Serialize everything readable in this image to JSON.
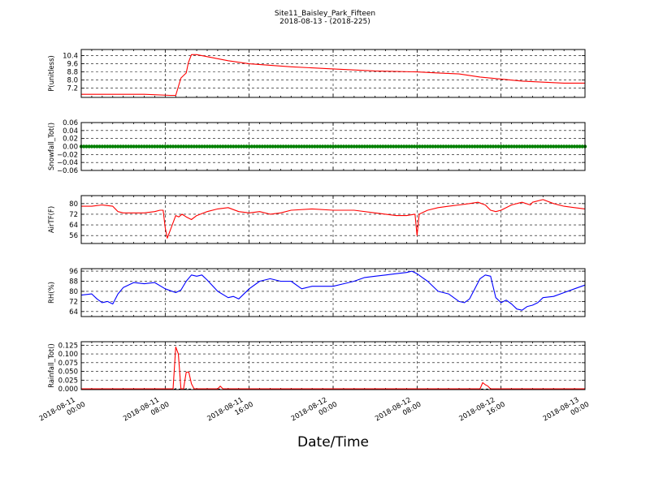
{
  "title": "Site11_Baisley_Park_Fifteen",
  "subtitle": "2018-08-13 - (2018-225)",
  "xlabel": "Date/Time",
  "x_ticks": [
    {
      "t": 0,
      "line1": "2018-08-11",
      "line2": "00:00"
    },
    {
      "t": 8,
      "line1": "2018-08-11",
      "line2": "08:00"
    },
    {
      "t": 16,
      "line1": "2018-08-11",
      "line2": "16:00"
    },
    {
      "t": 24,
      "line1": "2018-08-12",
      "line2": "00:00"
    },
    {
      "t": 32,
      "line1": "2018-08-12",
      "line2": "08:00"
    },
    {
      "t": 40,
      "line1": "2018-08-12",
      "line2": "16:00"
    },
    {
      "t": 48,
      "line1": "2018-08-13",
      "line2": "00:00"
    }
  ],
  "colors": {
    "red": "#ff0000",
    "green": "#008000",
    "blue": "#0000ff"
  },
  "chart_data": [
    {
      "type": "line",
      "ylabel": "P(unitless)",
      "ylim": [
        6.3,
        11.0
      ],
      "yticks": [
        7.2,
        8.0,
        8.8,
        9.6,
        10.4
      ],
      "ytick_labels": [
        "7.2",
        "8.0",
        "8.8",
        "9.6",
        "10.4"
      ],
      "color": "red",
      "x": [
        0,
        3,
        6,
        8.5,
        9,
        9.5,
        10,
        10.2,
        10.5,
        11,
        12,
        14,
        16,
        20,
        24,
        28,
        32,
        34,
        36,
        38,
        40,
        42,
        44,
        46,
        48
      ],
      "y": [
        6.6,
        6.6,
        6.6,
        6.5,
        6.5,
        8.2,
        8.7,
        9.7,
        10.5,
        10.5,
        10.3,
        9.9,
        9.6,
        9.3,
        9.1,
        8.9,
        8.8,
        8.7,
        8.6,
        8.3,
        8.1,
        7.9,
        7.8,
        7.7,
        7.7
      ]
    },
    {
      "type": "scatter",
      "ylabel": "Snowfall_Tot()",
      "ylim": [
        -0.06,
        0.06
      ],
      "yticks": [
        -0.06,
        -0.04,
        -0.02,
        0.0,
        0.02,
        0.04,
        0.06
      ],
      "ytick_labels": [
        "−0.06",
        "−0.04",
        "−0.02",
        "0.00",
        "0.02",
        "0.04",
        "0.06"
      ],
      "color": "green",
      "x_start": 0,
      "x_end": 48,
      "x_step": 0.25,
      "y_value": 0.0
    },
    {
      "type": "line",
      "ylabel": "AirTF(F)",
      "ylim": [
        50,
        86
      ],
      "yticks": [
        56,
        64,
        72,
        80
      ],
      "ytick_labels": [
        "56",
        "64",
        "72",
        "80"
      ],
      "color": "red",
      "x": [
        0,
        1,
        2,
        3,
        3.5,
        4,
        5,
        6,
        7,
        7.5,
        7.8,
        8,
        8.2,
        9,
        9.3,
        9.6,
        10,
        10.5,
        11,
        12,
        13,
        14,
        15,
        16,
        17,
        18,
        19,
        20,
        22,
        24,
        26,
        28,
        30,
        31,
        31.8,
        32,
        32.2,
        33,
        34,
        35,
        36,
        37,
        37.8,
        38.5,
        39,
        39.5,
        40,
        41,
        42,
        42.8,
        43,
        44,
        45,
        46,
        47,
        48
      ],
      "y": [
        78,
        78,
        79,
        78,
        74,
        73,
        73,
        73,
        74,
        75,
        75,
        62,
        54,
        71,
        70,
        72,
        70,
        68,
        71,
        74,
        76,
        77,
        74,
        73,
        74,
        72,
        73,
        75,
        76,
        75,
        75,
        73,
        71,
        71,
        72,
        56,
        72,
        75,
        77,
        78,
        79,
        80,
        81,
        79,
        75,
        74,
        75,
        79,
        81,
        79,
        81,
        83,
        80,
        78,
        77,
        76
      ]
    },
    {
      "type": "line",
      "ylabel": "RH(%)",
      "ylim": [
        60,
        98
      ],
      "yticks": [
        64,
        72,
        80,
        88,
        96
      ],
      "ytick_labels": [
        "64",
        "72",
        "80",
        "88",
        "96"
      ],
      "color": "blue",
      "x": [
        0,
        1,
        1.5,
        2,
        2.5,
        3,
        3.5,
        4,
        5,
        6,
        7,
        8,
        9,
        9.5,
        10,
        10.5,
        11,
        11.5,
        12,
        13,
        14,
        14.5,
        15,
        16,
        17,
        18,
        19,
        20,
        21,
        22,
        23,
        24,
        25,
        26,
        27,
        28,
        29,
        30,
        31,
        31.5,
        32,
        32.5,
        33,
        34,
        35,
        36,
        36.5,
        37,
        38,
        38.5,
        39,
        39.5,
        40,
        40.5,
        41,
        41.5,
        42,
        42.5,
        43,
        43.5,
        44,
        45,
        46,
        47,
        48
      ],
      "y": [
        77,
        78,
        74,
        71,
        72,
        70,
        78,
        83,
        87,
        86,
        87,
        82,
        79,
        81,
        88,
        93,
        92,
        93,
        89,
        80,
        75,
        76,
        74,
        82,
        88,
        90,
        88,
        88,
        82,
        84,
        84,
        84,
        86,
        88,
        91,
        92,
        93,
        94,
        95,
        96,
        94,
        91,
        88,
        80,
        78,
        72,
        71,
        74,
        90,
        93,
        92,
        75,
        71,
        73,
        70,
        66,
        65,
        68,
        69,
        71,
        75,
        76,
        79,
        82,
        85
      ]
    },
    {
      "type": "line",
      "ylabel": "Rainfall_Tot()",
      "ylim": [
        -0.002,
        0.135
      ],
      "yticks": [
        0.0,
        0.025,
        0.05,
        0.075,
        0.1,
        0.125
      ],
      "ytick_labels": [
        "0.000",
        "0.025",
        "0.050",
        "0.075",
        "0.100",
        "0.125"
      ],
      "color": "red",
      "x": [
        0,
        8,
        8.75,
        9,
        9.25,
        9.5,
        9.75,
        10,
        10.25,
        10.5,
        10.75,
        11,
        11.25,
        13,
        13.25,
        13.5,
        14,
        30,
        38,
        38.25,
        38.5,
        38.75,
        39,
        48
      ],
      "y": [
        0.0,
        0.0,
        0.0,
        0.12,
        0.1,
        0.0,
        0.0,
        0.048,
        0.048,
        0.015,
        0.0,
        0.0,
        0.0,
        0.0,
        0.008,
        0.0,
        0.0,
        0.0,
        0.0,
        0.018,
        0.012,
        0.008,
        0.0,
        0.0
      ]
    }
  ]
}
